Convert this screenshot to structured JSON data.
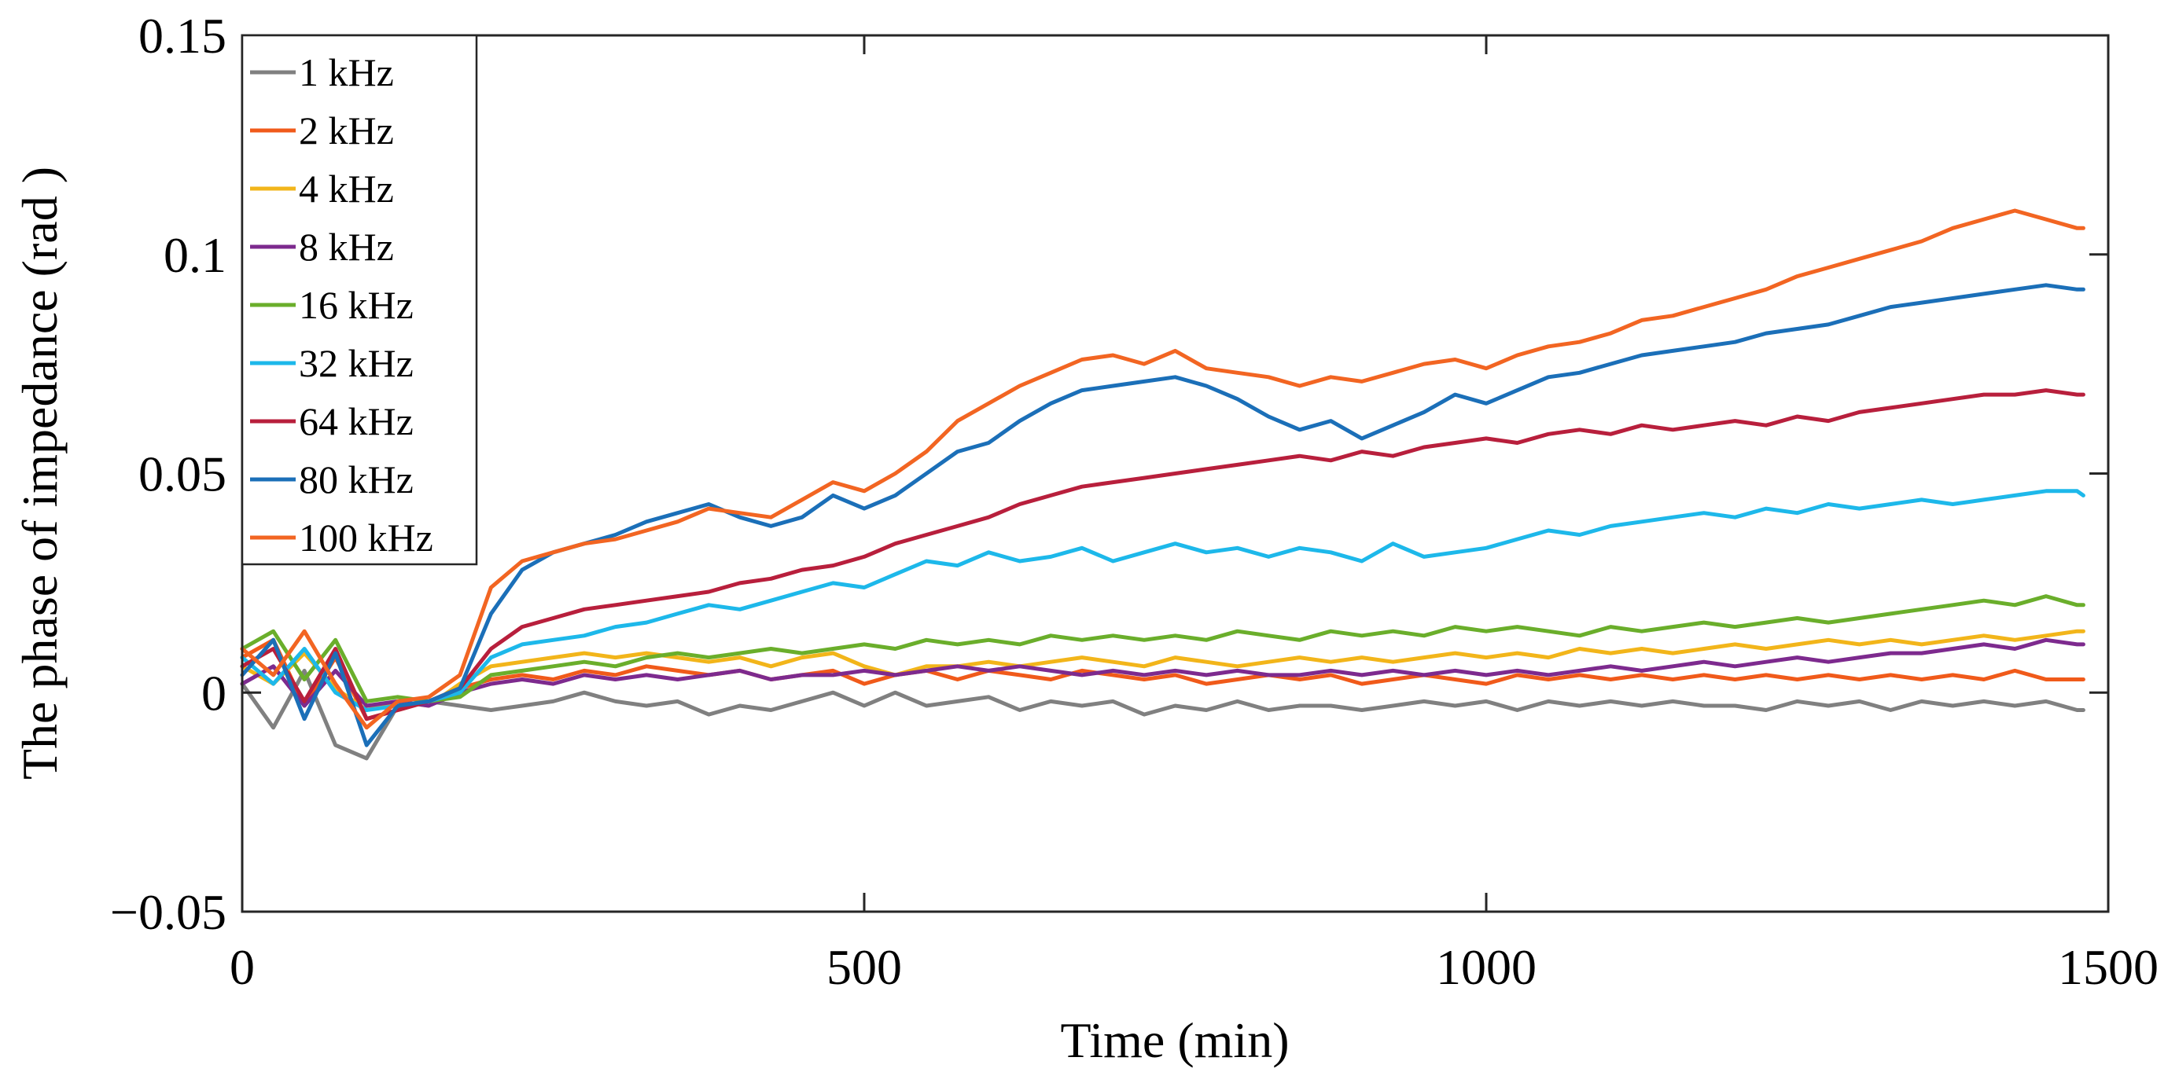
{
  "chart_data": {
    "type": "line",
    "title": "",
    "xlabel": "Time (min)",
    "ylabel": "The phase of impedance (rad )",
    "xlim": [
      0,
      1500
    ],
    "ylim": [
      -0.05,
      0.15
    ],
    "xticks": [
      0,
      500,
      1000,
      1500
    ],
    "xtick_labels": [
      "0",
      "500",
      "1000",
      "1500"
    ],
    "yticks": [
      -0.05,
      0,
      0.05,
      0.1,
      0.15
    ],
    "ytick_labels": [
      "−0.05",
      "0",
      "0.05",
      "0.1",
      "0.15"
    ],
    "grid": false,
    "legend_position": "top-left",
    "x": [
      0,
      25,
      50,
      75,
      100,
      125,
      150,
      175,
      200,
      225,
      250,
      275,
      300,
      325,
      350,
      375,
      400,
      425,
      450,
      475,
      500,
      525,
      550,
      575,
      600,
      625,
      650,
      675,
      700,
      725,
      750,
      775,
      800,
      825,
      850,
      875,
      900,
      925,
      950,
      975,
      1000,
      1025,
      1050,
      1075,
      1100,
      1125,
      1150,
      1175,
      1200,
      1225,
      1250,
      1275,
      1300,
      1325,
      1350,
      1375,
      1400,
      1425,
      1450,
      1475,
      1480
    ],
    "series": [
      {
        "name": "1 kHz",
        "color": "#808080",
        "values": [
          0.002,
          -0.008,
          0.005,
          -0.012,
          -0.015,
          -0.003,
          -0.002,
          -0.003,
          -0.004,
          -0.003,
          -0.002,
          0.0,
          -0.002,
          -0.003,
          -0.002,
          -0.005,
          -0.003,
          -0.004,
          -0.002,
          0.0,
          -0.003,
          0.0,
          -0.003,
          -0.002,
          -0.001,
          -0.004,
          -0.002,
          -0.003,
          -0.002,
          -0.005,
          -0.003,
          -0.004,
          -0.002,
          -0.004,
          -0.003,
          -0.003,
          -0.004,
          -0.003,
          -0.002,
          -0.003,
          -0.002,
          -0.004,
          -0.002,
          -0.003,
          -0.002,
          -0.003,
          -0.002,
          -0.003,
          -0.003,
          -0.004,
          -0.002,
          -0.003,
          -0.002,
          -0.004,
          -0.002,
          -0.003,
          -0.002,
          -0.003,
          -0.002,
          -0.004,
          -0.004
        ]
      },
      {
        "name": "2 kHz",
        "color": "#F05A1A",
        "values": [
          0.008,
          0.012,
          -0.003,
          0.008,
          -0.006,
          -0.004,
          -0.002,
          0.001,
          0.003,
          0.004,
          0.003,
          0.005,
          0.004,
          0.006,
          0.005,
          0.004,
          0.005,
          0.003,
          0.004,
          0.005,
          0.002,
          0.004,
          0.005,
          0.003,
          0.005,
          0.004,
          0.003,
          0.005,
          0.004,
          0.003,
          0.004,
          0.002,
          0.003,
          0.004,
          0.003,
          0.004,
          0.002,
          0.003,
          0.004,
          0.003,
          0.002,
          0.004,
          0.003,
          0.004,
          0.003,
          0.004,
          0.003,
          0.004,
          0.003,
          0.004,
          0.003,
          0.004,
          0.003,
          0.004,
          0.003,
          0.004,
          0.003,
          0.005,
          0.003,
          0.003,
          0.003
        ]
      },
      {
        "name": "4 kHz",
        "color": "#F2B51A",
        "values": [
          0.006,
          0.002,
          0.009,
          0.001,
          -0.004,
          -0.002,
          -0.003,
          0.002,
          0.006,
          0.007,
          0.008,
          0.009,
          0.008,
          0.009,
          0.008,
          0.007,
          0.008,
          0.006,
          0.008,
          0.009,
          0.006,
          0.004,
          0.006,
          0.006,
          0.007,
          0.006,
          0.007,
          0.008,
          0.007,
          0.006,
          0.008,
          0.007,
          0.006,
          0.007,
          0.008,
          0.007,
          0.008,
          0.007,
          0.008,
          0.009,
          0.008,
          0.009,
          0.008,
          0.01,
          0.009,
          0.01,
          0.009,
          0.01,
          0.011,
          0.01,
          0.011,
          0.012,
          0.011,
          0.012,
          0.011,
          0.012,
          0.013,
          0.012,
          0.013,
          0.014,
          0.014
        ]
      },
      {
        "name": "8 kHz",
        "color": "#7D2A8E",
        "values": [
          0.002,
          0.006,
          -0.003,
          0.005,
          -0.003,
          -0.002,
          -0.003,
          0.0,
          0.002,
          0.003,
          0.002,
          0.004,
          0.003,
          0.004,
          0.003,
          0.004,
          0.005,
          0.003,
          0.004,
          0.004,
          0.005,
          0.004,
          0.005,
          0.006,
          0.005,
          0.006,
          0.005,
          0.004,
          0.005,
          0.004,
          0.005,
          0.004,
          0.005,
          0.004,
          0.004,
          0.005,
          0.004,
          0.005,
          0.004,
          0.005,
          0.004,
          0.005,
          0.004,
          0.005,
          0.006,
          0.005,
          0.006,
          0.007,
          0.006,
          0.007,
          0.008,
          0.007,
          0.008,
          0.009,
          0.009,
          0.01,
          0.011,
          0.01,
          0.012,
          0.011,
          0.011
        ]
      },
      {
        "name": "16 kHz",
        "color": "#6AAE2B",
        "values": [
          0.01,
          0.014,
          0.003,
          0.012,
          -0.002,
          -0.001,
          -0.002,
          -0.001,
          0.004,
          0.005,
          0.006,
          0.007,
          0.006,
          0.008,
          0.009,
          0.008,
          0.009,
          0.01,
          0.009,
          0.01,
          0.011,
          0.01,
          0.012,
          0.011,
          0.012,
          0.011,
          0.013,
          0.012,
          0.013,
          0.012,
          0.013,
          0.012,
          0.014,
          0.013,
          0.012,
          0.014,
          0.013,
          0.014,
          0.013,
          0.015,
          0.014,
          0.015,
          0.014,
          0.013,
          0.015,
          0.014,
          0.015,
          0.016,
          0.015,
          0.016,
          0.017,
          0.016,
          0.017,
          0.018,
          0.019,
          0.02,
          0.021,
          0.02,
          0.022,
          0.02,
          0.02
        ]
      },
      {
        "name": "32 kHz",
        "color": "#1DB8EA",
        "values": [
          0.008,
          0.002,
          0.01,
          0.0,
          -0.004,
          -0.003,
          -0.002,
          0.0,
          0.008,
          0.011,
          0.012,
          0.013,
          0.015,
          0.016,
          0.018,
          0.02,
          0.019,
          0.021,
          0.023,
          0.025,
          0.024,
          0.027,
          0.03,
          0.029,
          0.032,
          0.03,
          0.031,
          0.033,
          0.03,
          0.032,
          0.034,
          0.032,
          0.033,
          0.031,
          0.033,
          0.032,
          0.03,
          0.034,
          0.031,
          0.032,
          0.033,
          0.035,
          0.037,
          0.036,
          0.038,
          0.039,
          0.04,
          0.041,
          0.04,
          0.042,
          0.041,
          0.043,
          0.042,
          0.043,
          0.044,
          0.043,
          0.044,
          0.045,
          0.046,
          0.046,
          0.045
        ]
      },
      {
        "name": "64 kHz",
        "color": "#B81F3C",
        "values": [
          0.006,
          0.01,
          -0.002,
          0.01,
          -0.006,
          -0.004,
          -0.002,
          0.001,
          0.01,
          0.015,
          0.017,
          0.019,
          0.02,
          0.021,
          0.022,
          0.023,
          0.025,
          0.026,
          0.028,
          0.029,
          0.031,
          0.034,
          0.036,
          0.038,
          0.04,
          0.043,
          0.045,
          0.047,
          0.048,
          0.049,
          0.05,
          0.051,
          0.052,
          0.053,
          0.054,
          0.053,
          0.055,
          0.054,
          0.056,
          0.057,
          0.058,
          0.057,
          0.059,
          0.06,
          0.059,
          0.061,
          0.06,
          0.061,
          0.062,
          0.061,
          0.063,
          0.062,
          0.064,
          0.065,
          0.066,
          0.067,
          0.068,
          0.068,
          0.069,
          0.068,
          0.068
        ]
      },
      {
        "name": "80 kHz",
        "color": "#1B6FB8",
        "values": [
          0.004,
          0.012,
          -0.006,
          0.009,
          -0.012,
          -0.003,
          -0.002,
          0.001,
          0.018,
          0.028,
          0.032,
          0.034,
          0.036,
          0.039,
          0.041,
          0.043,
          0.04,
          0.038,
          0.04,
          0.045,
          0.042,
          0.045,
          0.05,
          0.055,
          0.057,
          0.062,
          0.066,
          0.069,
          0.07,
          0.071,
          0.072,
          0.07,
          0.067,
          0.063,
          0.06,
          0.062,
          0.058,
          0.061,
          0.064,
          0.068,
          0.066,
          0.069,
          0.072,
          0.073,
          0.075,
          0.077,
          0.078,
          0.079,
          0.08,
          0.082,
          0.083,
          0.084,
          0.086,
          0.088,
          0.089,
          0.09,
          0.091,
          0.092,
          0.093,
          0.092,
          0.092
        ]
      },
      {
        "name": "100 kHz",
        "color": "#F26522",
        "values": [
          0.01,
          0.004,
          0.014,
          0.002,
          -0.008,
          -0.002,
          -0.001,
          0.004,
          0.024,
          0.03,
          0.032,
          0.034,
          0.035,
          0.037,
          0.039,
          0.042,
          0.041,
          0.04,
          0.044,
          0.048,
          0.046,
          0.05,
          0.055,
          0.062,
          0.066,
          0.07,
          0.073,
          0.076,
          0.077,
          0.075,
          0.078,
          0.074,
          0.073,
          0.072,
          0.07,
          0.072,
          0.071,
          0.073,
          0.075,
          0.076,
          0.074,
          0.077,
          0.079,
          0.08,
          0.082,
          0.085,
          0.086,
          0.088,
          0.09,
          0.092,
          0.095,
          0.097,
          0.099,
          0.101,
          0.103,
          0.106,
          0.108,
          0.11,
          0.108,
          0.106,
          0.106
        ]
      }
    ]
  }
}
